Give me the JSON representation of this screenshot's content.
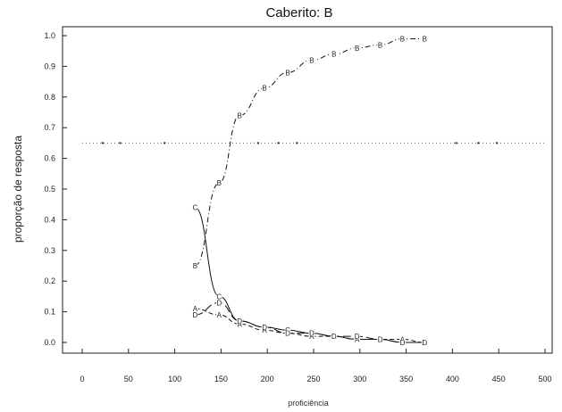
{
  "chart_data": {
    "type": "line",
    "title": "Caberito: B",
    "xlabel": "proficiência",
    "ylabel": "proporção de resposta",
    "xlim": [
      0,
      500
    ],
    "ylim": [
      0.0,
      1.0
    ],
    "x_ticks": [
      "0",
      "50",
      "100",
      "150",
      "200",
      "250",
      "300",
      "350",
      "400",
      "450",
      "500"
    ],
    "y_ticks": [
      "0.0",
      "0.1",
      "0.2",
      "0.3",
      "0.4",
      "0.5",
      "0.6",
      "0.7",
      "0.8",
      "0.9",
      "1.0"
    ],
    "grid": false,
    "reference_line": {
      "y": 0.65,
      "markers_x": [
        22,
        41,
        89,
        190,
        212,
        232,
        404,
        428,
        448
      ]
    },
    "series": [
      {
        "symbol": "B",
        "style": "dash-dot",
        "x": [
          122,
          148,
          170,
          197,
          222,
          248,
          272,
          297,
          322,
          346,
          370
        ],
        "y": [
          0.25,
          0.52,
          0.74,
          0.83,
          0.88,
          0.92,
          0.94,
          0.96,
          0.97,
          0.99,
          0.99
        ]
      },
      {
        "symbol": "C",
        "style": "solid",
        "x": [
          122,
          148,
          170,
          197,
          222,
          248,
          272,
          297,
          322,
          346,
          370
        ],
        "y": [
          0.44,
          0.15,
          0.07,
          0.05,
          0.04,
          0.03,
          0.02,
          0.01,
          0.01,
          0.0,
          0.0
        ]
      },
      {
        "symbol": "A",
        "style": "dashed",
        "x": [
          122,
          148,
          170,
          197,
          222,
          248,
          272,
          297,
          322,
          346,
          370
        ],
        "y": [
          0.11,
          0.09,
          0.06,
          0.04,
          0.03,
          0.02,
          0.02,
          0.01,
          0.01,
          0.01,
          0.0
        ]
      },
      {
        "symbol": "D",
        "style": "long-dash",
        "x": [
          122,
          148,
          170,
          197,
          222,
          248,
          272,
          297,
          322,
          346,
          370
        ],
        "y": [
          0.09,
          0.13,
          0.07,
          0.05,
          0.03,
          0.03,
          0.02,
          0.02,
          0.01,
          0.0,
          0.0
        ]
      }
    ]
  }
}
